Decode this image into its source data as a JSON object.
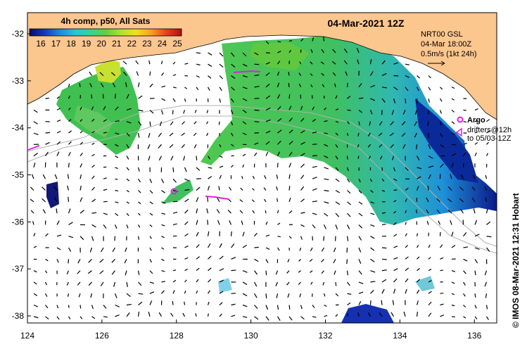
{
  "colorbar": {
    "title": "4h comp, p50, All Sats",
    "ticks": [
      "16",
      "17",
      "18",
      "19",
      "20",
      "21",
      "22",
      "23",
      "24",
      "25"
    ],
    "colors": [
      "#0a0a6e",
      "#1535c8",
      "#1e88e0",
      "#20c8d8",
      "#30d890",
      "#60d040",
      "#b0e030",
      "#f0e020",
      "#f8a020",
      "#e84020",
      "#b01010"
    ]
  },
  "date_label": "04-Mar-2021 12Z",
  "current_info": {
    "line1": "NRT00 GSL",
    "line2": "04-Mar 18:00Z",
    "line3": "0.5m/s (1kt 24h)"
  },
  "argo_legend": {
    "title": "Argo",
    "line1": "drifters@12h",
    "line2": "to 05/03-12Z"
  },
  "credit": "© IMOS 08-Mar-2021 12:31 Hobart",
  "axes": {
    "x_ticks": [
      "124",
      "126",
      "128",
      "130",
      "132",
      "134",
      "136"
    ],
    "y_ticks": [
      "-32",
      "-33",
      "-34",
      "-35",
      "-36",
      "-37",
      "-38"
    ],
    "lon_range": [
      124,
      136.6
    ],
    "lat_range": [
      -31.55,
      -38.15
    ]
  },
  "colors": {
    "land": "#fcc68f",
    "magenta": "#e020e0",
    "bathymetry": "#b0b0b0"
  }
}
